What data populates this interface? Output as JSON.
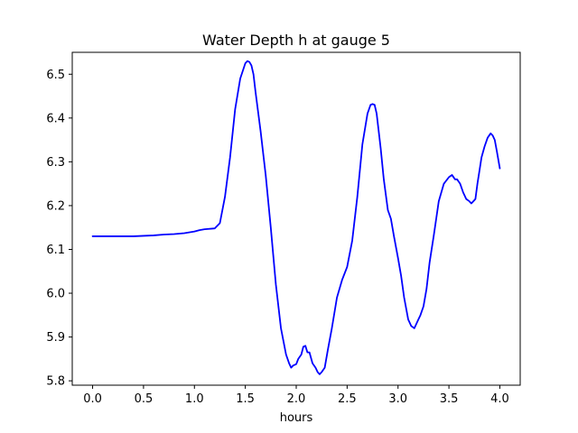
{
  "chart_data": {
    "type": "line",
    "title": "Water Depth h at gauge 5",
    "xlabel": "hours",
    "ylabel": "",
    "xlim": [
      -0.2,
      4.2
    ],
    "ylim": [
      5.79,
      6.55
    ],
    "xticks": [
      0.0,
      0.5,
      1.0,
      1.5,
      2.0,
      2.5,
      3.0,
      3.5,
      4.0
    ],
    "xtick_labels": [
      "0.0",
      "0.5",
      "1.0",
      "1.5",
      "2.0",
      "2.5",
      "3.0",
      "3.5",
      "4.0"
    ],
    "yticks": [
      5.8,
      5.9,
      6.0,
      6.1,
      6.2,
      6.3,
      6.4,
      6.5
    ],
    "ytick_labels": [
      "5.8",
      "5.9",
      "6.0",
      "6.1",
      "6.2",
      "6.3",
      "6.4",
      "6.5"
    ],
    "grid": false,
    "legend": "none",
    "series": [
      {
        "color": "#0000ff",
        "x": [
          0.0,
          0.2,
          0.4,
          0.5,
          0.6,
          0.7,
          0.8,
          0.9,
          1.0,
          1.05,
          1.1,
          1.2,
          1.25,
          1.3,
          1.35,
          1.4,
          1.45,
          1.5,
          1.52,
          1.54,
          1.56,
          1.58,
          1.6,
          1.65,
          1.7,
          1.75,
          1.8,
          1.85,
          1.9,
          1.93,
          1.95,
          1.97,
          2.0,
          2.02,
          2.05,
          2.07,
          2.09,
          2.11,
          2.13,
          2.16,
          2.19,
          2.21,
          2.23,
          2.25,
          2.28,
          2.31,
          2.35,
          2.4,
          2.45,
          2.5,
          2.55,
          2.6,
          2.65,
          2.7,
          2.73,
          2.75,
          2.77,
          2.79,
          2.81,
          2.83,
          2.86,
          2.9,
          2.93,
          2.96,
          3.0,
          3.03,
          3.06,
          3.1,
          3.13,
          3.16,
          3.18,
          3.2,
          3.22,
          3.25,
          3.28,
          3.31,
          3.35,
          3.4,
          3.45,
          3.5,
          3.53,
          3.56,
          3.58,
          3.61,
          3.64,
          3.67,
          3.7,
          3.72,
          3.74,
          3.76,
          3.78,
          3.8,
          3.82,
          3.85,
          3.88,
          3.91,
          3.93,
          3.95,
          3.97,
          4.0
        ],
        "y": [
          6.13,
          6.13,
          6.13,
          6.131,
          6.132,
          6.134,
          6.135,
          6.137,
          6.141,
          6.144,
          6.146,
          6.148,
          6.16,
          6.22,
          6.31,
          6.42,
          6.49,
          6.525,
          6.53,
          6.528,
          6.52,
          6.5,
          6.46,
          6.37,
          6.27,
          6.15,
          6.02,
          5.92,
          5.86,
          5.84,
          5.83,
          5.835,
          5.838,
          5.85,
          5.86,
          5.878,
          5.88,
          5.865,
          5.865,
          5.84,
          5.83,
          5.82,
          5.815,
          5.82,
          5.83,
          5.87,
          5.92,
          5.99,
          6.03,
          6.06,
          6.12,
          6.22,
          6.34,
          6.41,
          6.43,
          6.432,
          6.43,
          6.41,
          6.37,
          6.33,
          6.26,
          6.19,
          6.17,
          6.13,
          6.08,
          6.04,
          5.99,
          5.94,
          5.925,
          5.92,
          5.93,
          5.94,
          5.95,
          5.97,
          6.01,
          6.07,
          6.13,
          6.21,
          6.25,
          6.265,
          6.27,
          6.26,
          6.26,
          6.25,
          6.23,
          6.215,
          6.21,
          6.205,
          6.21,
          6.215,
          6.25,
          6.28,
          6.31,
          6.335,
          6.355,
          6.365,
          6.36,
          6.35,
          6.325,
          6.285
        ]
      }
    ]
  }
}
